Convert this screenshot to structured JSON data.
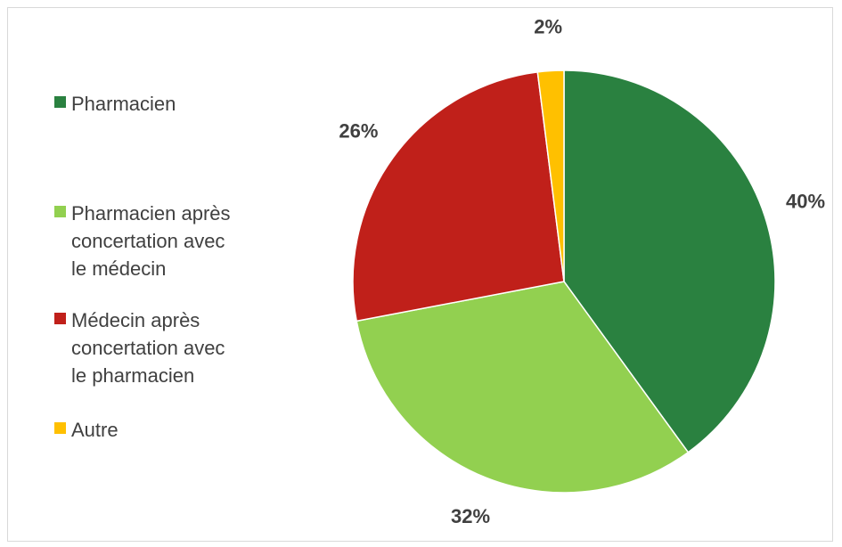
{
  "chart_data": {
    "type": "pie",
    "categories": [
      "Pharmacien",
      "Pharmacien après concertation avec le médecin",
      "Médecin après concertation avec le pharmacien",
      "Autre"
    ],
    "values": [
      40,
      32,
      26,
      2
    ],
    "data_labels": [
      "40%",
      "32%",
      "26%",
      "2%"
    ],
    "colors": [
      "#2A8140",
      "#92D050",
      "#C0201A",
      "#FFC000"
    ],
    "legend_position": "left",
    "legend": [
      {
        "lines": [
          "Pharmacien"
        ]
      },
      {
        "lines": [
          "Pharmacien après",
          "concertation avec",
          "le médecin"
        ]
      },
      {
        "lines": [
          "Médecin après",
          "concertation avec",
          "le pharmacien"
        ]
      },
      {
        "lines": [
          "Autre"
        ]
      }
    ]
  }
}
